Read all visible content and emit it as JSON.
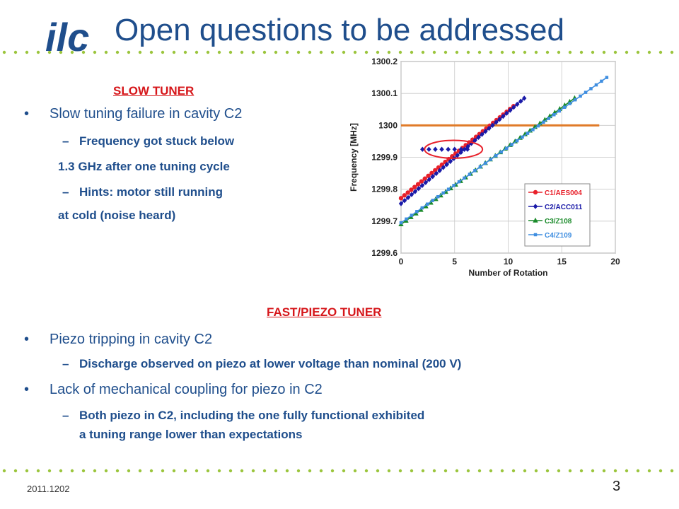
{
  "logo_text": "ilc",
  "title": "Open questions to be addressed",
  "slow": {
    "heading": "SLOW TUNER",
    "bullet": "Slow tuning failure in cavity C2",
    "sub1_line1": "Frequency got stuck below",
    "sub1_line2": "1.3 GHz after one tuning cycle",
    "sub2_line1": "Hints: motor still running",
    "sub2_line2": "at cold (noise heard)"
  },
  "fast": {
    "heading": "FAST/PIEZO TUNER",
    "bullet1": "Piezo tripping in cavity C2",
    "sub1": "Discharge observed on piezo at lower voltage than nominal (200 V)",
    "bullet2": "Lack of mechanical coupling for piezo in C2",
    "sub2_line1": "Both piezo in C2, including the one fully functional exhibited",
    "sub2_line2": "a tuning range lower than expectations"
  },
  "footer": {
    "date": "2011.1202",
    "page": "3"
  },
  "markers": {
    "bullet": "•",
    "dash": "–"
  },
  "colors": {
    "title": "#1f4e8c",
    "heading": "#d6161a",
    "dots": "#9bc53d"
  },
  "chart_data": {
    "type": "scatter",
    "xlabel": "Number of Rotation",
    "ylabel": "Frequency [MHz]",
    "xlim": [
      0,
      20
    ],
    "ylim": [
      1299.6,
      1300.2
    ],
    "xticks": [
      "0",
      "5",
      "10",
      "15",
      "20"
    ],
    "yticks": [
      "1299.6",
      "1299.7",
      "1299.8",
      "1299.9",
      "1300",
      "1300.1",
      "1300.2"
    ],
    "grid": true,
    "legend_position": "bottom-right",
    "reference_line": {
      "y": 1300.0,
      "x_start": 0,
      "x_end": 18.5,
      "color": "#e07b28"
    },
    "series": [
      {
        "name": "C1/AES004",
        "color": "#e8202a",
        "marker": "circle",
        "x_start": 0,
        "x_end": 10.5,
        "y_start": 1299.772,
        "y_end": 1300.06,
        "points": 34,
        "extra_points": []
      },
      {
        "name": "C2/ACC011",
        "color": "#1a1aa8",
        "marker": "diamond",
        "x_start": 0,
        "x_end": 11.5,
        "y_start": 1299.755,
        "y_end": 1300.085,
        "points": 36,
        "extra_points": [
          [
            2.0,
            1299.925
          ],
          [
            2.6,
            1299.925
          ],
          [
            3.2,
            1299.925
          ],
          [
            3.8,
            1299.925
          ],
          [
            4.4,
            1299.925
          ],
          [
            5.0,
            1299.925
          ],
          [
            5.6,
            1299.925
          ],
          [
            6.2,
            1299.925
          ]
        ]
      },
      {
        "name": "C3/Z108",
        "color": "#1a8a2a",
        "marker": "triangle",
        "x_start": 0,
        "x_end": 16.2,
        "y_start": 1299.69,
        "y_end": 1300.085,
        "points": 36,
        "extra_points": []
      },
      {
        "name": "C4/Z109",
        "color": "#3f8ee0",
        "marker": "square",
        "x_start": 0,
        "x_end": 19.2,
        "y_start": 1299.695,
        "y_end": 1300.15,
        "points": 40,
        "extra_points": []
      }
    ],
    "annotation": {
      "type": "ellipse",
      "cx": 4.9,
      "cy": 1299.925,
      "rx": 2.7,
      "ry": 0.028,
      "color": "#e8202a"
    }
  }
}
